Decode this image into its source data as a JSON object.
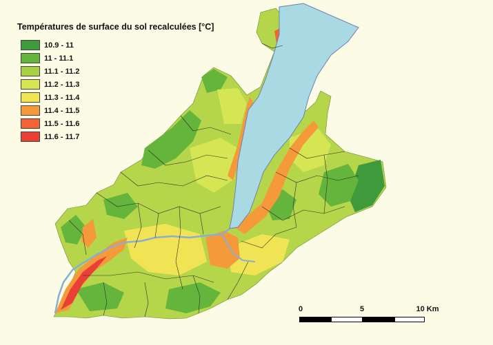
{
  "legend": {
    "title": "Températures de surface du sol recalculées [°C]",
    "items": [
      {
        "label": "10.9 - 11",
        "color": "#3e9a3a"
      },
      {
        "label": "11 - 11.1",
        "color": "#65b53d"
      },
      {
        "label": "11.1 - 11.2",
        "color": "#a8d043"
      },
      {
        "label": "11.2 - 11.3",
        "color": "#d5e553"
      },
      {
        "label": "11.3 - 11.4",
        "color": "#f1e454"
      },
      {
        "label": "11.4 - 11.5",
        "color": "#f59a3a"
      },
      {
        "label": "11.5 - 11.6",
        "color": "#f46238"
      },
      {
        "label": "11.6 - 11.7",
        "color": "#ea3f35"
      }
    ]
  },
  "scale_bar": {
    "labels": [
      "0",
      "5",
      "10 Km"
    ]
  },
  "colors": {
    "background": "#fbfbe6",
    "lake": "#a9d9e3",
    "river": "#8aaed0",
    "border": "#2a2a2a"
  }
}
